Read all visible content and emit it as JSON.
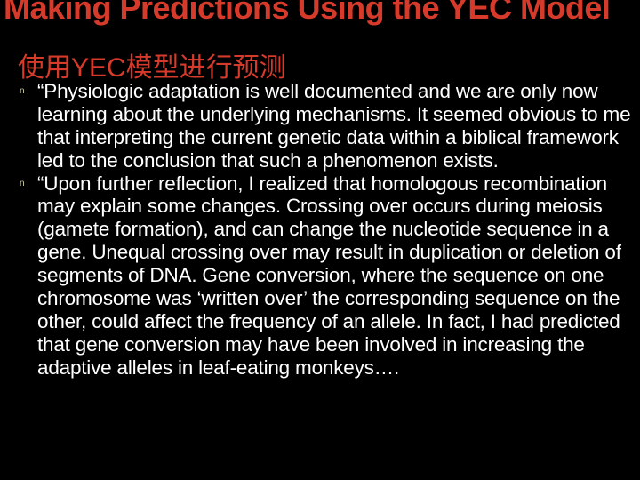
{
  "colors": {
    "background": "#000000",
    "title": "#d63a2a",
    "body_text": "#ffffff",
    "bullet_mark": "#cfcfa0"
  },
  "title": {
    "en": "Making Predictions Using the YEC Model",
    "zh": "使用YEC模型进行预测",
    "en_fontsize": 36,
    "zh_fontsize": 30,
    "font_weight": 700
  },
  "body": {
    "fontsize": 22.5,
    "line_height": 1.15,
    "bullet_glyph": "n",
    "bullets": [
      "“Physiologic adaptation is well documented and we are only now learning about the underlying mechanisms. It seemed obvious to me that interpreting the current genetic data within a biblical framework led to the conclusion that such a phenomenon exists.",
      "“Upon further reflection, I realized that homologous recombination may explain some changes. Crossing over occurs during meiosis (gamete formation), and can change the nucleotide sequence in a gene. Unequal crossing over may result in duplication or deletion of segments of DNA. Gene conversion, where the sequence on one chromosome was ‘written over’ the corresponding sequence on the other, could affect the frequency of an allele. In fact, I had predicted that gene conversion may have been involved in increasing the adaptive alleles in leaf-eating monkeys…."
    ]
  }
}
